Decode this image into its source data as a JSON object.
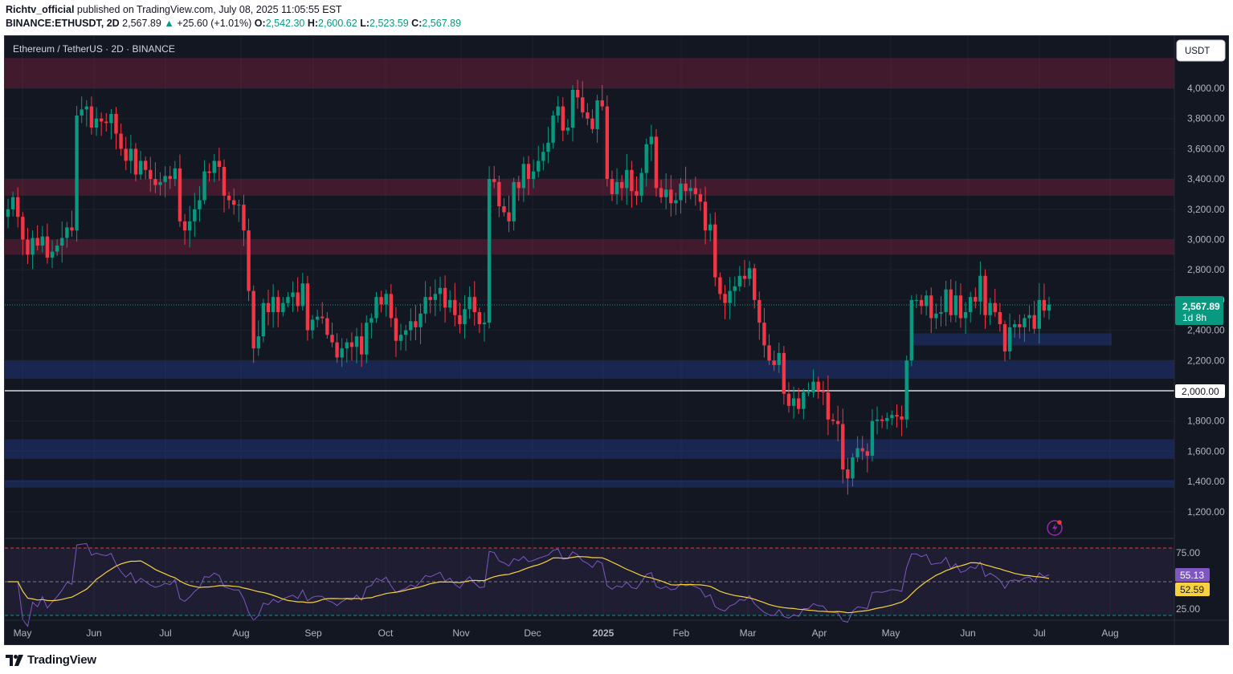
{
  "header": {
    "author": "Richtv_official",
    "published_text": "published on TradingView.com, July 08, 2025 11:05:55 EST",
    "symbol": "BINANCE:ETHUSDT, 2D",
    "last": "2,567.89",
    "change_arrow": "▲",
    "change": "+25.60 (+1.01%)",
    "o_label": "O:",
    "o": "2,542.30",
    "h_label": "H:",
    "h": "2,600.62",
    "l_label": "L:",
    "l": "2,523.59",
    "c_label": "C:",
    "c": "2,567.89"
  },
  "chart": {
    "legend": "Ethereum / TetherUS · 2D · BINANCE",
    "currency": "USDT",
    "price_label": "2,567.89",
    "countdown": "1d 8h",
    "level_label": "2,000.00",
    "rsi_label": "55.13",
    "rsi_ma_label": "52.59"
  },
  "footer": {
    "brand": "TradingView"
  },
  "colors": {
    "background": "#131722",
    "up": "#089981",
    "down": "#f23645",
    "rsi": "#7e57c2",
    "rsi_ma": "#f7d23e",
    "supply_zone": "#7a1f3d",
    "demand_zone": "#1e3a8a"
  },
  "chart_data": {
    "type": "candlestick",
    "symbol": "ETHUSDT",
    "timeframe": "2D",
    "y_ticks": [
      1200,
      1400,
      1600,
      1800,
      2000,
      2200,
      2400,
      2600,
      2800,
      3000,
      3200,
      3400,
      3600,
      3800,
      4000
    ],
    "x_ticks": [
      "May",
      "Jun",
      "Jul",
      "Aug",
      "Sep",
      "Oct",
      "Nov",
      "Dec",
      "2025",
      "Feb",
      "Mar",
      "Apr",
      "May",
      "Jun",
      "Jul",
      "Aug"
    ],
    "horizontal_line": 2000,
    "last_price": 2567.89,
    "zones": [
      {
        "kind": "supply",
        "from": 4000,
        "to": 4200
      },
      {
        "kind": "supply",
        "from": 3290,
        "to": 3400
      },
      {
        "kind": "supply",
        "from": 2900,
        "to": 3000
      },
      {
        "kind": "demand",
        "from": 2300,
        "to": 2380,
        "start": "May 2025"
      },
      {
        "kind": "demand",
        "from": 2080,
        "to": 2200
      },
      {
        "kind": "demand",
        "from": 1550,
        "to": 1680
      },
      {
        "kind": "demand",
        "from": 1360,
        "to": 1410
      }
    ],
    "close": [
      3200,
      3280,
      3150,
      3000,
      2900,
      3010,
      2960,
      3020,
      2880,
      2920,
      2960,
      3010,
      3080,
      3060,
      3820,
      3860,
      3880,
      3740,
      3800,
      3780,
      3770,
      3830,
      3700,
      3600,
      3520,
      3600,
      3430,
      3520,
      3460,
      3400,
      3360,
      3380,
      3420,
      3400,
      3470,
      3120,
      3060,
      3120,
      3200,
      3260,
      3450,
      3440,
      3520,
      3480,
      3290,
      3260,
      3230,
      3230,
      3060,
      2660,
      2280,
      2360,
      2580,
      2520,
      2620,
      2520,
      2580,
      2620,
      2650,
      2560,
      2710,
      2400,
      2470,
      2490,
      2480,
      2370,
      2320,
      2220,
      2280,
      2320,
      2290,
      2360,
      2240,
      2450,
      2480,
      2620,
      2570,
      2640,
      2480,
      2330,
      2370,
      2400,
      2460,
      2420,
      2510,
      2620,
      2600,
      2640,
      2680,
      2550,
      2600,
      2500,
      2440,
      2540,
      2620,
      2520,
      2440,
      2450,
      3400,
      3380,
      3220,
      3180,
      3120,
      3380,
      3340,
      3500,
      3400,
      3450,
      3520,
      3580,
      3640,
      3820,
      3880,
      3720,
      3740,
      3990,
      3940,
      3840,
      3800,
      3730,
      3920,
      3880,
      3400,
      3300,
      3380,
      3340,
      3460,
      3320,
      3290,
      3440,
      3630,
      3680,
      3340,
      3280,
      3330,
      3240,
      3260,
      3370,
      3320,
      3340,
      3300,
      3250,
      3060,
      3100,
      2750,
      2640,
      2580,
      2660,
      2690,
      2760,
      2740,
      2810,
      2600,
      2450,
      2300,
      2200,
      2170,
      2250,
      1980,
      1900,
      1950,
      1880,
      1990,
      1990,
      2060,
      2000,
      1990,
      1810,
      1800,
      1780,
      1480,
      1420,
      1560,
      1620,
      1600,
      1570,
      1800,
      1810,
      1800,
      1820,
      1840,
      1830,
      1810,
      2200,
      2600,
      2600,
      2560,
      2630,
      2480,
      2510,
      2520,
      2670,
      2500,
      2630,
      2480,
      2520,
      2620,
      2590,
      2760,
      2500,
      2580,
      2520,
      2440,
      2260,
      2420,
      2440,
      2420,
      2480,
      2500,
      2410,
      2600,
      2530,
      2570
    ]
  }
}
